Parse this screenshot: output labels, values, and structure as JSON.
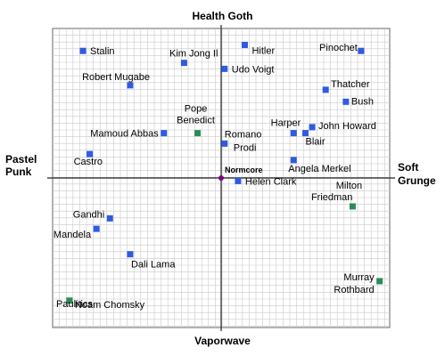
{
  "chart_data": {
    "type": "scatter",
    "axis_words": {
      "top": "Health Goth",
      "bottom": "Vaporwave",
      "left": [
        "Pastel",
        "Punk"
      ],
      "right": [
        "Soft",
        "Grunge"
      ]
    },
    "center_label": "Normcore",
    "xlim": [
      -10,
      10
    ],
    "ylim": [
      -10,
      10
    ],
    "grid": true,
    "colors": {
      "blue": "#2f5be0",
      "green": "#2e8b57",
      "center": "#800080",
      "grid": "#c9c9c9",
      "axis": "#222222"
    },
    "points": [
      {
        "label": "Stalin",
        "x": -8.2,
        "y": 8.5,
        "color": "blue"
      },
      {
        "label": "Kim Jong Il",
        "x": -2.2,
        "y": 7.7,
        "color": "blue"
      },
      {
        "label": "Hitler",
        "x": 1.4,
        "y": 8.9,
        "color": "blue"
      },
      {
        "label": "Pinochet",
        "x": 8.3,
        "y": 8.5,
        "color": "blue"
      },
      {
        "label": "Udo Voigt",
        "x": 0.2,
        "y": 7.3,
        "color": "blue"
      },
      {
        "label": "Robert Mugabe",
        "x": -5.4,
        "y": 6.2,
        "color": "blue"
      },
      {
        "label": "Thatcher",
        "x": 6.2,
        "y": 5.9,
        "color": "blue"
      },
      {
        "label": "Bush",
        "x": 7.4,
        "y": 5.1,
        "color": "blue"
      },
      {
        "label": "Pope Benedict",
        "x": -1.4,
        "y": 3.0,
        "color": "green"
      },
      {
        "label": "Mamoud Abbas",
        "x": -3.4,
        "y": 3.0,
        "color": "blue"
      },
      {
        "label": "Romano Prodi",
        "x": 0.2,
        "y": 2.3,
        "color": "blue"
      },
      {
        "label": "Harper",
        "x": 4.3,
        "y": 3.0,
        "color": "blue"
      },
      {
        "label": "John Howard",
        "x": 5.4,
        "y": 3.4,
        "color": "blue"
      },
      {
        "label": "Blair",
        "x": 5.0,
        "y": 3.0,
        "color": "blue"
      },
      {
        "label": "Castro",
        "x": -7.8,
        "y": 1.6,
        "color": "blue"
      },
      {
        "label": "Angela Merkel",
        "x": 4.3,
        "y": 1.2,
        "color": "blue"
      },
      {
        "label": "Helen Clark",
        "x": 1.0,
        "y": -0.2,
        "color": "blue"
      },
      {
        "label": "Milton Friedman",
        "x": 7.8,
        "y": -1.9,
        "color": "green"
      },
      {
        "label": "Gandhi",
        "x": -6.6,
        "y": -2.7,
        "color": "blue"
      },
      {
        "label": "Mandela",
        "x": -7.4,
        "y": -3.4,
        "color": "blue"
      },
      {
        "label": "Dali Lama",
        "x": -5.4,
        "y": -5.1,
        "color": "blue"
      },
      {
        "label": "Murray Rothbard",
        "x": 9.4,
        "y": -6.9,
        "color": "green"
      },
      {
        "label": "Noam Chomsky",
        "x": -9.0,
        "y": -8.2,
        "color": "green"
      }
    ]
  },
  "watermark": "Paulitics"
}
